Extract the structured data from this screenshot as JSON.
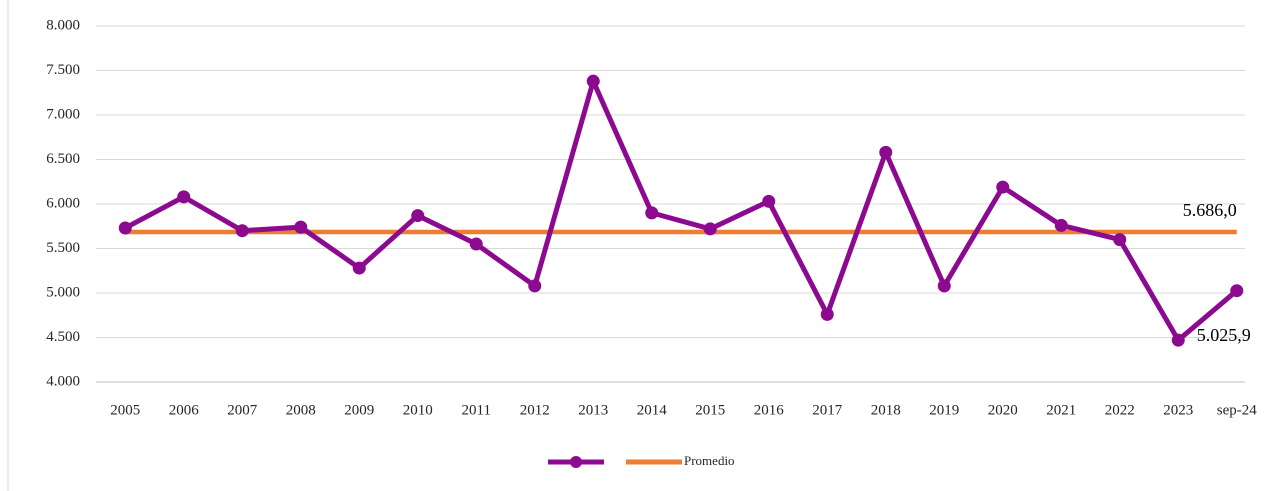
{
  "chart_data": {
    "type": "line",
    "categories": [
      "2005",
      "2006",
      "2007",
      "2008",
      "2009",
      "2010",
      "2011",
      "2012",
      "2013",
      "2014",
      "2015",
      "2016",
      "2017",
      "2018",
      "2019",
      "2020",
      "2021",
      "2022",
      "2023",
      "sep-24"
    ],
    "series": [
      {
        "color": "#8b0a8f",
        "values": [
          5730,
          6080,
          5700,
          5740,
          5280,
          5870,
          5550,
          5080,
          7380,
          5900,
          5720,
          6030,
          4760,
          6580,
          5080,
          6190,
          5760,
          5600,
          4470,
          5025.9
        ],
        "value_labels": [
          null,
          null,
          null,
          null,
          null,
          null,
          null,
          null,
          null,
          null,
          null,
          null,
          null,
          null,
          null,
          null,
          null,
          null,
          null,
          "5.025,9"
        ]
      },
      {
        "name": "Promedio",
        "color": "#ed7d31",
        "values": [
          5686,
          5686,
          5686,
          5686,
          5686,
          5686,
          5686,
          5686,
          5686,
          5686,
          5686,
          5686,
          5686,
          5686,
          5686,
          5686,
          5686,
          5686,
          5686,
          5686
        ],
        "value_labels": [
          null,
          null,
          null,
          null,
          null,
          null,
          null,
          null,
          null,
          null,
          null,
          null,
          null,
          null,
          null,
          null,
          null,
          null,
          null,
          "5.686,0"
        ]
      }
    ],
    "ylim": [
      4000,
      8000
    ],
    "yticks": [
      {
        "value": 4000,
        "label": "4.000"
      },
      {
        "value": 4500,
        "label": "4.500"
      },
      {
        "value": 5000,
        "label": "5.000"
      },
      {
        "value": 5500,
        "label": "5.500"
      },
      {
        "value": 6000,
        "label": "6.000"
      },
      {
        "value": 6500,
        "label": "6.500"
      },
      {
        "value": 7000,
        "label": "7.000"
      },
      {
        "value": 7500,
        "label": "7.500"
      },
      {
        "value": 8000,
        "label": "8.000"
      }
    ],
    "grid": true,
    "legend": "bottom"
  }
}
